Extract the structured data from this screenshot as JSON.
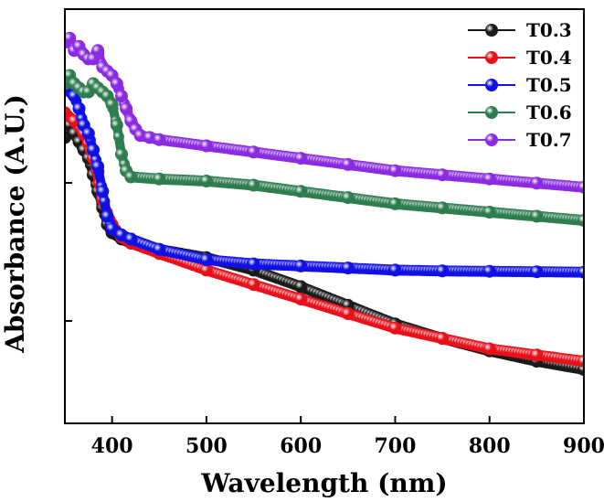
{
  "chart_data": {
    "type": "line",
    "title": "",
    "xlabel": "Wavelength (nm)",
    "ylabel": "Absorbance (A.U.)",
    "xlim": [
      350,
      900
    ],
    "ylim": [
      0,
      100
    ],
    "xticks": [
      400,
      500,
      600,
      700,
      800,
      900
    ],
    "x_tick_labels": [
      "400",
      "500",
      "600",
      "700",
      "800",
      "900"
    ],
    "y_tick_labels_shown": false,
    "legend_position": "top-right",
    "series": [
      {
        "name": "T0.3",
        "color": "#1a1a1a",
        "points": [
          [
            350,
            69
          ],
          [
            355,
            72
          ],
          [
            360,
            70
          ],
          [
            365,
            68
          ],
          [
            370,
            66
          ],
          [
            375,
            64
          ],
          [
            380,
            60
          ],
          [
            385,
            56
          ],
          [
            390,
            52
          ],
          [
            395,
            48
          ],
          [
            400,
            46
          ],
          [
            410,
            44.5
          ],
          [
            420,
            43.5
          ],
          [
            450,
            42
          ],
          [
            500,
            40
          ],
          [
            550,
            37
          ],
          [
            600,
            33
          ],
          [
            650,
            28.5
          ],
          [
            700,
            24
          ],
          [
            750,
            20.5
          ],
          [
            800,
            17.5
          ],
          [
            850,
            15
          ],
          [
            900,
            13
          ]
        ]
      },
      {
        "name": "T0.4",
        "color": "#e8101a",
        "points": [
          [
            350,
            75
          ],
          [
            360,
            73
          ],
          [
            370,
            70
          ],
          [
            380,
            64
          ],
          [
            390,
            54
          ],
          [
            400,
            48
          ],
          [
            410,
            45
          ],
          [
            420,
            43.5
          ],
          [
            450,
            41
          ],
          [
            500,
            37
          ],
          [
            550,
            33.5
          ],
          [
            600,
            30
          ],
          [
            650,
            26.5
          ],
          [
            700,
            23
          ],
          [
            750,
            20.5
          ],
          [
            800,
            18
          ],
          [
            850,
            16.5
          ],
          [
            900,
            15
          ]
        ]
      },
      {
        "name": "T0.5",
        "color": "#1010e6",
        "points": [
          [
            350,
            81
          ],
          [
            360,
            79
          ],
          [
            365,
            76
          ],
          [
            370,
            72
          ],
          [
            375,
            70
          ],
          [
            380,
            66
          ],
          [
            385,
            62
          ],
          [
            390,
            56
          ],
          [
            395,
            50
          ],
          [
            400,
            47
          ],
          [
            410,
            45.5
          ],
          [
            420,
            44.5
          ],
          [
            450,
            42
          ],
          [
            500,
            39.5
          ],
          [
            550,
            38.5
          ],
          [
            600,
            38
          ],
          [
            650,
            37.5
          ],
          [
            700,
            37
          ],
          [
            750,
            36.8
          ],
          [
            800,
            36.7
          ],
          [
            850,
            36.6
          ],
          [
            900,
            36.5
          ]
        ]
      },
      {
        "name": "T0.6",
        "color": "#2e7d4f",
        "points": [
          [
            350,
            82
          ],
          [
            355,
            84
          ],
          [
            360,
            82
          ],
          [
            365,
            81
          ],
          [
            370,
            80
          ],
          [
            375,
            80
          ],
          [
            380,
            82
          ],
          [
            385,
            81
          ],
          [
            390,
            80
          ],
          [
            395,
            79
          ],
          [
            400,
            77
          ],
          [
            405,
            72
          ],
          [
            410,
            65
          ],
          [
            415,
            61
          ],
          [
            420,
            59.5
          ],
          [
            450,
            59
          ],
          [
            500,
            58.5
          ],
          [
            550,
            57.5
          ],
          [
            600,
            56
          ],
          [
            650,
            54.5
          ],
          [
            700,
            53
          ],
          [
            750,
            52
          ],
          [
            800,
            51
          ],
          [
            850,
            50
          ],
          [
            900,
            49
          ]
        ]
      },
      {
        "name": "T0.7",
        "color": "#8a2be2",
        "points": [
          [
            350,
            92
          ],
          [
            355,
            93
          ],
          [
            360,
            90
          ],
          [
            365,
            91
          ],
          [
            370,
            89
          ],
          [
            375,
            88
          ],
          [
            380,
            88
          ],
          [
            385,
            90
          ],
          [
            390,
            86
          ],
          [
            395,
            85
          ],
          [
            400,
            84
          ],
          [
            405,
            82
          ],
          [
            410,
            79
          ],
          [
            415,
            76
          ],
          [
            420,
            73
          ],
          [
            425,
            71
          ],
          [
            430,
            69.5
          ],
          [
            440,
            69
          ],
          [
            450,
            68.5
          ],
          [
            500,
            67
          ],
          [
            550,
            65.5
          ],
          [
            600,
            64
          ],
          [
            650,
            62.5
          ],
          [
            700,
            61
          ],
          [
            750,
            60
          ],
          [
            800,
            59
          ],
          [
            850,
            58
          ],
          [
            900,
            57
          ]
        ]
      }
    ]
  }
}
